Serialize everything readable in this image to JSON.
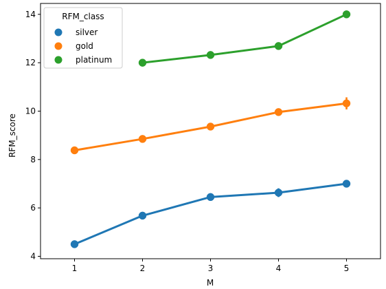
{
  "chart_data": {
    "type": "line",
    "title": "",
    "xlabel": "M",
    "ylabel": "RFM_score",
    "categories": [
      1,
      2,
      3,
      4,
      5
    ],
    "x_ticks": [
      "1",
      "2",
      "3",
      "4",
      "5"
    ],
    "y_ticks": [
      "4",
      "6",
      "8",
      "10",
      "12",
      "14"
    ],
    "ylim": [
      3.9,
      14.45
    ],
    "grid": false,
    "legend": {
      "title": "RFM_class",
      "placement": "top-left"
    },
    "series": [
      {
        "name": "silver",
        "color": "#1f77b4",
        "values": [
          4.5,
          5.68,
          6.45,
          6.63,
          7.0
        ],
        "error": [
          0.05,
          0.07,
          0.07,
          0.18,
          0.05
        ]
      },
      {
        "name": "gold",
        "color": "#ff7f0e",
        "values": [
          8.38,
          8.85,
          9.36,
          9.96,
          10.32
        ],
        "error": [
          0.15,
          0.08,
          0.08,
          0.1,
          0.25
        ]
      },
      {
        "name": "platinum",
        "color": "#2ca02c",
        "values": [
          null,
          12.0,
          12.32,
          12.69,
          14.0
        ],
        "error": [
          0,
          0.05,
          0.08,
          0.08,
          0.05
        ]
      }
    ]
  }
}
